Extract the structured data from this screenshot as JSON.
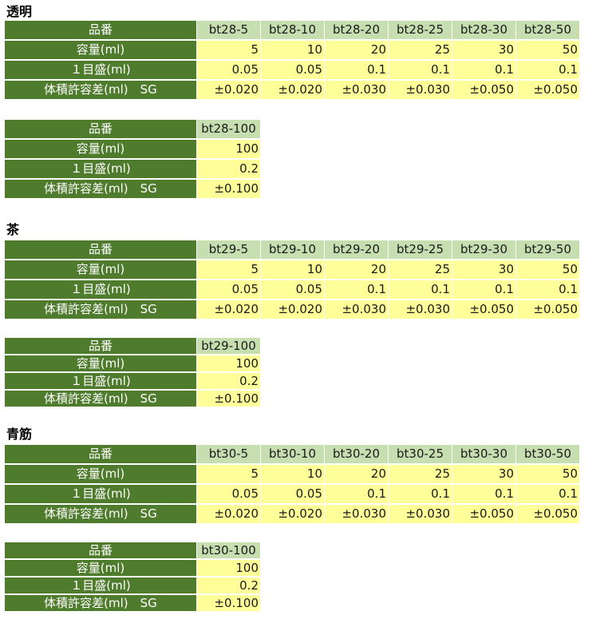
{
  "row_labels": {
    "part_no": "品番",
    "capacity": "容量(ml)",
    "graduation": "１目盛(ml)",
    "tolerance": "体積許容差(ml)　SG"
  },
  "sections": [
    {
      "heading": "透明",
      "main": {
        "codes": [
          "bt28-5",
          "bt28-10",
          "bt28-20",
          "bt28-25",
          "bt28-30",
          "bt28-50"
        ],
        "capacity": [
          "5",
          "10",
          "20",
          "25",
          "30",
          "50"
        ],
        "graduation": [
          "0.05",
          "0.05",
          "0.1",
          "0.1",
          "0.1",
          "0.1"
        ],
        "tolerance": [
          "±0.020",
          "±0.020",
          "±0.030",
          "±0.030",
          "±0.050",
          "±0.050"
        ]
      },
      "extra": {
        "code": "bt28-100",
        "capacity": "100",
        "graduation": "0.2",
        "tolerance": "±0.100"
      }
    },
    {
      "heading": "茶",
      "main": {
        "codes": [
          "bt29-5",
          "bt29-10",
          "bt29-20",
          "bt29-25",
          "bt29-30",
          "bt29-50"
        ],
        "capacity": [
          "5",
          "10",
          "20",
          "25",
          "30",
          "50"
        ],
        "graduation": [
          "0.05",
          "0.05",
          "0.1",
          "0.1",
          "0.1",
          "0.1"
        ],
        "tolerance": [
          "±0.020",
          "±0.020",
          "±0.030",
          "±0.030",
          "±0.050",
          "±0.050"
        ]
      },
      "extra": {
        "code": "bt29-100",
        "capacity": "100",
        "graduation": "0.2",
        "tolerance": "±0.100"
      }
    },
    {
      "heading": "青筋",
      "main": {
        "codes": [
          "bt30-5",
          "bt30-10",
          "bt30-20",
          "bt30-25",
          "bt30-30",
          "bt30-50"
        ],
        "capacity": [
          "5",
          "10",
          "20",
          "25",
          "30",
          "50"
        ],
        "graduation": [
          "0.05",
          "0.05",
          "0.1",
          "0.1",
          "0.1",
          "0.1"
        ],
        "tolerance": [
          "±0.020",
          "±0.020",
          "±0.030",
          "±0.030",
          "±0.050",
          "±0.050"
        ]
      },
      "extra": {
        "code": "bt30-100",
        "capacity": "100",
        "graduation": "0.2",
        "tolerance": "±0.100"
      }
    }
  ]
}
